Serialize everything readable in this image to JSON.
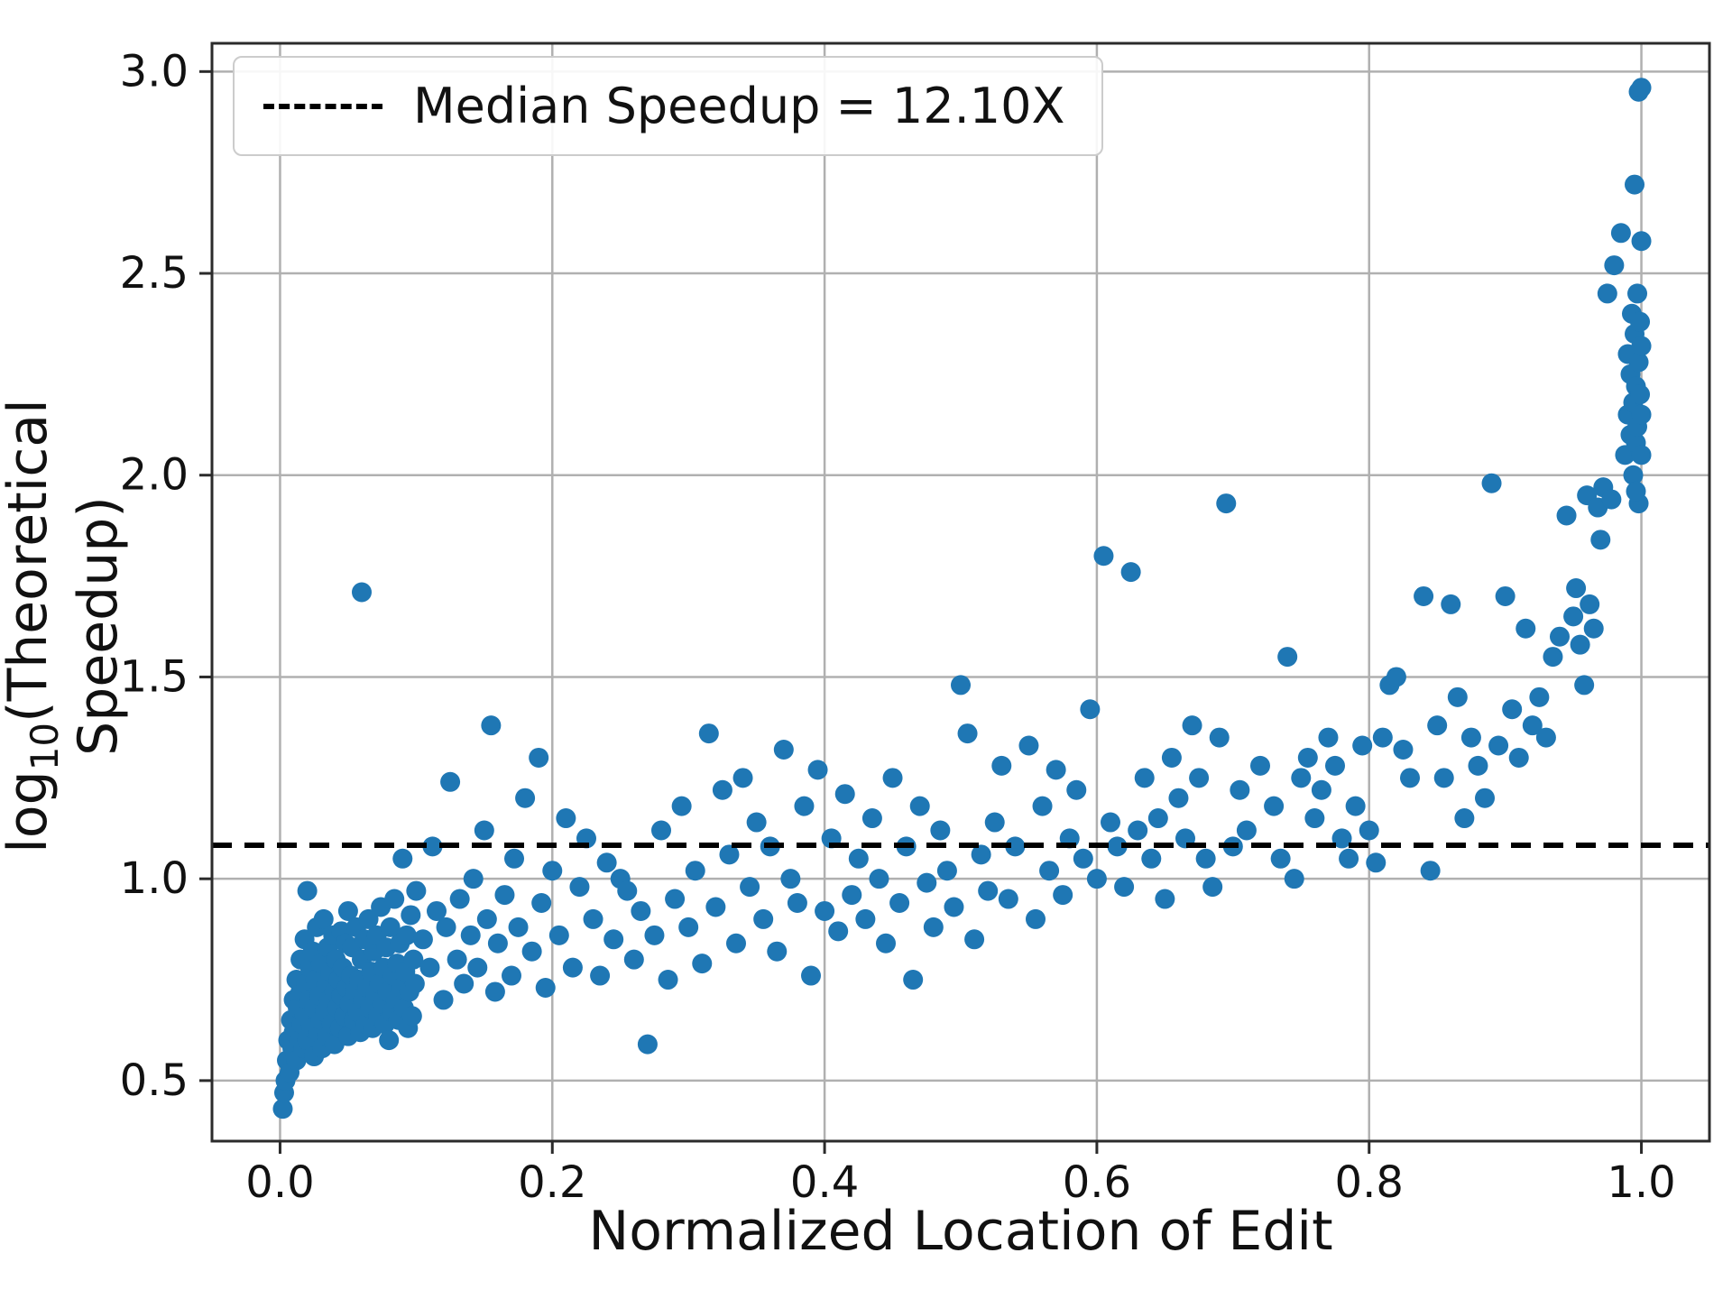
{
  "chart_data": {
    "type": "scatter",
    "title": "",
    "xlabel": "Normalized Location of Edit",
    "ylabel_parts": {
      "prefix": "log",
      "subscript": "10",
      "suffix": "(Theoretical Speedup)"
    },
    "xlim": [
      -0.05,
      1.05
    ],
    "ylim": [
      0.35,
      3.07
    ],
    "xticks": [
      0.0,
      0.2,
      0.4,
      0.6,
      0.8,
      1.0
    ],
    "yticks": [
      0.5,
      1.0,
      1.5,
      2.0,
      2.5,
      3.0
    ],
    "grid": true,
    "legend": {
      "label": "Median Speedup = 12.10X",
      "position": "upper left",
      "line_style": "dashed"
    },
    "median_line": {
      "y": 1.083,
      "value_text": "12.10X",
      "color": "#000000",
      "style": "dashed"
    },
    "point_color": "#1f77b4",
    "point_radius": 11,
    "grid_color": "#b0b0b0",
    "spine_color": "#2b2b2b",
    "points": [
      [
        0.002,
        0.43
      ],
      [
        0.003,
        0.47
      ],
      [
        0.004,
        0.5
      ],
      [
        0.005,
        0.55
      ],
      [
        0.006,
        0.6
      ],
      [
        0.007,
        0.52
      ],
      [
        0.008,
        0.65
      ],
      [
        0.009,
        0.58
      ],
      [
        0.01,
        0.7
      ],
      [
        0.01,
        0.62
      ],
      [
        0.012,
        0.75
      ],
      [
        0.012,
        0.55
      ],
      [
        0.013,
        0.68
      ],
      [
        0.014,
        0.6
      ],
      [
        0.015,
        0.8
      ],
      [
        0.015,
        0.72
      ],
      [
        0.016,
        0.64
      ],
      [
        0.017,
        0.58
      ],
      [
        0.018,
        0.85
      ],
      [
        0.018,
        0.66
      ],
      [
        0.019,
        0.74
      ],
      [
        0.02,
        0.97
      ],
      [
        0.02,
        0.6
      ],
      [
        0.021,
        0.7
      ],
      [
        0.022,
        0.78
      ],
      [
        0.023,
        0.63
      ],
      [
        0.024,
        0.82
      ],
      [
        0.025,
        0.68
      ],
      [
        0.025,
        0.56
      ],
      [
        0.026,
        0.75
      ],
      [
        0.027,
        0.88
      ],
      [
        0.028,
        0.62
      ],
      [
        0.029,
        0.71
      ],
      [
        0.03,
        0.79
      ],
      [
        0.03,
        0.65
      ],
      [
        0.031,
        0.58
      ],
      [
        0.032,
        0.9
      ],
      [
        0.033,
        0.67
      ],
      [
        0.034,
        0.74
      ],
      [
        0.035,
        0.83
      ],
      [
        0.035,
        0.61
      ],
      [
        0.036,
        0.7
      ],
      [
        0.037,
        0.77
      ],
      [
        0.038,
        0.64
      ],
      [
        0.039,
        0.86
      ],
      [
        0.04,
        0.72
      ],
      [
        0.04,
        0.59
      ],
      [
        0.041,
        0.8
      ],
      [
        0.042,
        0.68
      ],
      [
        0.043,
        0.75
      ],
      [
        0.044,
        0.63
      ],
      [
        0.045,
        0.87
      ],
      [
        0.045,
        0.71
      ],
      [
        0.046,
        0.78
      ],
      [
        0.047,
        0.66
      ],
      [
        0.048,
        0.84
      ],
      [
        0.049,
        0.73
      ],
      [
        0.05,
        0.61
      ],
      [
        0.05,
        0.92
      ],
      [
        0.051,
        0.69
      ],
      [
        0.052,
        0.76
      ],
      [
        0.053,
        0.83
      ],
      [
        0.054,
        0.65
      ],
      [
        0.055,
        0.72
      ],
      [
        0.056,
        0.88
      ],
      [
        0.057,
        0.67
      ],
      [
        0.058,
        0.75
      ],
      [
        0.059,
        0.62
      ],
      [
        0.06,
        1.71
      ],
      [
        0.06,
        0.8
      ],
      [
        0.061,
        0.7
      ],
      [
        0.062,
        0.85
      ],
      [
        0.063,
        0.64
      ],
      [
        0.064,
        0.73
      ],
      [
        0.065,
        0.9
      ],
      [
        0.066,
        0.68
      ],
      [
        0.067,
        0.77
      ],
      [
        0.068,
        0.63
      ],
      [
        0.069,
        0.82
      ],
      [
        0.07,
        0.71
      ],
      [
        0.071,
        0.86
      ],
      [
        0.072,
        0.66
      ],
      [
        0.073,
        0.74
      ],
      [
        0.074,
        0.93
      ],
      [
        0.075,
        0.69
      ],
      [
        0.076,
        0.78
      ],
      [
        0.077,
        0.64
      ],
      [
        0.078,
        0.83
      ],
      [
        0.079,
        0.72
      ],
      [
        0.08,
        0.6
      ],
      [
        0.081,
        0.88
      ],
      [
        0.082,
        0.67
      ],
      [
        0.083,
        0.76
      ],
      [
        0.084,
        0.95
      ],
      [
        0.085,
        0.7
      ],
      [
        0.086,
        0.79
      ],
      [
        0.087,
        0.65
      ],
      [
        0.088,
        0.84
      ],
      [
        0.089,
        0.73
      ],
      [
        0.09,
        1.05
      ],
      [
        0.091,
        0.68
      ],
      [
        0.092,
        0.77
      ],
      [
        0.093,
        0.86
      ],
      [
        0.094,
        0.63
      ],
      [
        0.095,
        0.72
      ],
      [
        0.096,
        0.91
      ],
      [
        0.097,
        0.66
      ],
      [
        0.098,
        0.8
      ],
      [
        0.099,
        0.74
      ],
      [
        0.1,
        0.97
      ],
      [
        0.105,
        0.85
      ],
      [
        0.11,
        0.78
      ],
      [
        0.112,
        1.08
      ],
      [
        0.115,
        0.92
      ],
      [
        0.12,
        0.7
      ],
      [
        0.122,
        0.88
      ],
      [
        0.125,
        1.24
      ],
      [
        0.13,
        0.8
      ],
      [
        0.132,
        0.95
      ],
      [
        0.135,
        0.74
      ],
      [
        0.14,
        0.86
      ],
      [
        0.142,
        1.0
      ],
      [
        0.145,
        0.78
      ],
      [
        0.15,
        1.12
      ],
      [
        0.152,
        0.9
      ],
      [
        0.155,
        1.38
      ],
      [
        0.158,
        0.72
      ],
      [
        0.16,
        0.84
      ],
      [
        0.165,
        0.96
      ],
      [
        0.17,
        0.76
      ],
      [
        0.172,
        1.05
      ],
      [
        0.175,
        0.88
      ],
      [
        0.18,
        1.2
      ],
      [
        0.185,
        0.82
      ],
      [
        0.19,
        1.3
      ],
      [
        0.192,
        0.94
      ],
      [
        0.195,
        0.73
      ],
      [
        0.2,
        1.02
      ],
      [
        0.205,
        0.86
      ],
      [
        0.21,
        1.15
      ],
      [
        0.215,
        0.78
      ],
      [
        0.22,
        0.98
      ],
      [
        0.225,
        1.1
      ],
      [
        0.23,
        0.9
      ],
      [
        0.235,
        0.76
      ],
      [
        0.24,
        1.04
      ],
      [
        0.245,
        0.85
      ],
      [
        0.25,
        1.0
      ],
      [
        0.255,
        0.97
      ],
      [
        0.26,
        0.8
      ],
      [
        0.265,
        0.92
      ],
      [
        0.27,
        0.59
      ],
      [
        0.275,
        0.86
      ],
      [
        0.28,
        1.12
      ],
      [
        0.285,
        0.75
      ],
      [
        0.29,
        0.95
      ],
      [
        0.295,
        1.18
      ],
      [
        0.3,
        0.88
      ],
      [
        0.305,
        1.02
      ],
      [
        0.31,
        0.79
      ],
      [
        0.315,
        1.36
      ],
      [
        0.32,
        0.93
      ],
      [
        0.325,
        1.22
      ],
      [
        0.33,
        1.06
      ],
      [
        0.335,
        0.84
      ],
      [
        0.34,
        1.25
      ],
      [
        0.345,
        0.98
      ],
      [
        0.35,
        1.14
      ],
      [
        0.355,
        0.9
      ],
      [
        0.36,
        1.08
      ],
      [
        0.365,
        0.82
      ],
      [
        0.37,
        1.32
      ],
      [
        0.375,
        1.0
      ],
      [
        0.38,
        0.94
      ],
      [
        0.385,
        1.18
      ],
      [
        0.39,
        0.76
      ],
      [
        0.395,
        1.27
      ],
      [
        0.4,
        0.92
      ],
      [
        0.405,
        1.1
      ],
      [
        0.41,
        0.87
      ],
      [
        0.415,
        1.21
      ],
      [
        0.42,
        0.96
      ],
      [
        0.425,
        1.05
      ],
      [
        0.43,
        0.9
      ],
      [
        0.435,
        1.15
      ],
      [
        0.44,
        1.0
      ],
      [
        0.445,
        0.84
      ],
      [
        0.45,
        1.25
      ],
      [
        0.455,
        0.94
      ],
      [
        0.46,
        1.08
      ],
      [
        0.465,
        0.75
      ],
      [
        0.47,
        1.18
      ],
      [
        0.475,
        0.99
      ],
      [
        0.48,
        0.88
      ],
      [
        0.485,
        1.12
      ],
      [
        0.49,
        1.02
      ],
      [
        0.495,
        0.93
      ],
      [
        0.5,
        1.48
      ],
      [
        0.505,
        1.36
      ],
      [
        0.51,
        0.85
      ],
      [
        0.515,
        1.06
      ],
      [
        0.52,
        0.97
      ],
      [
        0.525,
        1.14
      ],
      [
        0.53,
        1.28
      ],
      [
        0.535,
        0.95
      ],
      [
        0.54,
        1.08
      ],
      [
        0.55,
        1.33
      ],
      [
        0.555,
        0.9
      ],
      [
        0.56,
        1.18
      ],
      [
        0.565,
        1.02
      ],
      [
        0.57,
        1.27
      ],
      [
        0.575,
        0.96
      ],
      [
        0.58,
        1.1
      ],
      [
        0.585,
        1.22
      ],
      [
        0.59,
        1.05
      ],
      [
        0.595,
        1.42
      ],
      [
        0.6,
        1.0
      ],
      [
        0.605,
        1.8
      ],
      [
        0.61,
        1.14
      ],
      [
        0.615,
        1.08
      ],
      [
        0.62,
        0.98
      ],
      [
        0.625,
        1.76
      ],
      [
        0.63,
        1.12
      ],
      [
        0.635,
        1.25
      ],
      [
        0.64,
        1.05
      ],
      [
        0.645,
        1.15
      ],
      [
        0.65,
        0.95
      ],
      [
        0.655,
        1.3
      ],
      [
        0.66,
        1.2
      ],
      [
        0.665,
        1.1
      ],
      [
        0.67,
        1.38
      ],
      [
        0.675,
        1.25
      ],
      [
        0.68,
        1.05
      ],
      [
        0.685,
        0.98
      ],
      [
        0.69,
        1.35
      ],
      [
        0.695,
        1.93
      ],
      [
        0.7,
        1.08
      ],
      [
        0.705,
        1.22
      ],
      [
        0.71,
        1.12
      ],
      [
        0.72,
        1.28
      ],
      [
        0.73,
        1.18
      ],
      [
        0.735,
        1.05
      ],
      [
        0.74,
        1.55
      ],
      [
        0.745,
        1.0
      ],
      [
        0.75,
        1.25
      ],
      [
        0.755,
        1.3
      ],
      [
        0.76,
        1.15
      ],
      [
        0.765,
        1.22
      ],
      [
        0.77,
        1.35
      ],
      [
        0.775,
        1.28
      ],
      [
        0.78,
        1.1
      ],
      [
        0.785,
        1.05
      ],
      [
        0.79,
        1.18
      ],
      [
        0.795,
        1.33
      ],
      [
        0.8,
        1.12
      ],
      [
        0.805,
        1.04
      ],
      [
        0.81,
        1.35
      ],
      [
        0.815,
        1.48
      ],
      [
        0.82,
        1.5
      ],
      [
        0.825,
        1.32
      ],
      [
        0.83,
        1.25
      ],
      [
        0.84,
        1.7
      ],
      [
        0.845,
        1.02
      ],
      [
        0.85,
        1.38
      ],
      [
        0.855,
        1.25
      ],
      [
        0.86,
        1.68
      ],
      [
        0.865,
        1.45
      ],
      [
        0.87,
        1.15
      ],
      [
        0.875,
        1.35
      ],
      [
        0.88,
        1.28
      ],
      [
        0.885,
        1.2
      ],
      [
        0.89,
        1.98
      ],
      [
        0.895,
        1.33
      ],
      [
        0.9,
        1.7
      ],
      [
        0.905,
        1.42
      ],
      [
        0.91,
        1.3
      ],
      [
        0.915,
        1.62
      ],
      [
        0.92,
        1.38
      ],
      [
        0.925,
        1.45
      ],
      [
        0.93,
        1.35
      ],
      [
        0.935,
        1.55
      ],
      [
        0.94,
        1.6
      ],
      [
        0.945,
        1.9
      ],
      [
        0.95,
        1.65
      ],
      [
        0.952,
        1.72
      ],
      [
        0.955,
        1.58
      ],
      [
        0.958,
        1.48
      ],
      [
        0.96,
        1.95
      ],
      [
        0.962,
        1.68
      ],
      [
        0.965,
        1.62
      ],
      [
        0.968,
        1.92
      ],
      [
        0.97,
        1.84
      ],
      [
        0.972,
        1.97
      ],
      [
        0.975,
        2.45
      ],
      [
        0.978,
        1.94
      ],
      [
        0.98,
        2.52
      ],
      [
        0.985,
        2.6
      ],
      [
        0.988,
        2.05
      ],
      [
        0.99,
        2.15
      ],
      [
        0.99,
        2.3
      ],
      [
        0.992,
        2.1
      ],
      [
        0.992,
        2.25
      ],
      [
        0.993,
        2.4
      ],
      [
        0.994,
        2.0
      ],
      [
        0.994,
        2.18
      ],
      [
        0.995,
        2.35
      ],
      [
        0.995,
        2.72
      ],
      [
        0.996,
        2.08
      ],
      [
        0.996,
        2.22
      ],
      [
        0.997,
        2.45
      ],
      [
        0.997,
        2.12
      ],
      [
        0.998,
        2.28
      ],
      [
        0.998,
        2.95
      ],
      [
        0.999,
        2.2
      ],
      [
        0.999,
        2.38
      ],
      [
        1.0,
        2.96
      ],
      [
        1.0,
        2.15
      ],
      [
        1.0,
        2.05
      ],
      [
        1.0,
        2.58
      ],
      [
        1.0,
        2.32
      ],
      [
        0.998,
        1.93
      ],
      [
        0.996,
        1.96
      ]
    ]
  }
}
